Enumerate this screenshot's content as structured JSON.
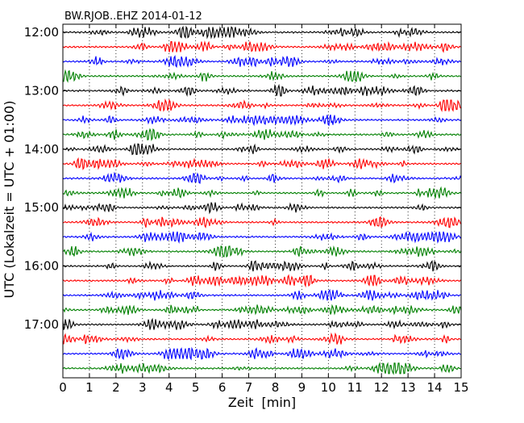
{
  "chart_data": {
    "type": "line",
    "title": "BW.RJOB..EHZ 2014-01-12",
    "xlabel": "Zeit  [min]",
    "ylabel": "UTC (Lokalzeit = UTC + 01:00)",
    "xlim": [
      0,
      15
    ],
    "x_ticks": [
      "0",
      "1",
      "2",
      "3",
      "4",
      "5",
      "6",
      "7",
      "8",
      "9",
      "10",
      "11",
      "12",
      "13",
      "14",
      "15"
    ],
    "y_tick_labels": [
      "12:00",
      "13:00",
      "14:00",
      "15:00",
      "16:00",
      "17:00"
    ],
    "rows_per_hour": 4,
    "row_minutes": 15,
    "row_count": 24,
    "row_start": "12:00",
    "row_end": "17:45",
    "grid": "dotted vertical lines at each minute",
    "colors": [
      "#000000",
      "#ff0000",
      "#0000ff",
      "#008000"
    ],
    "series": [
      {
        "values": []
      }
    ]
  }
}
